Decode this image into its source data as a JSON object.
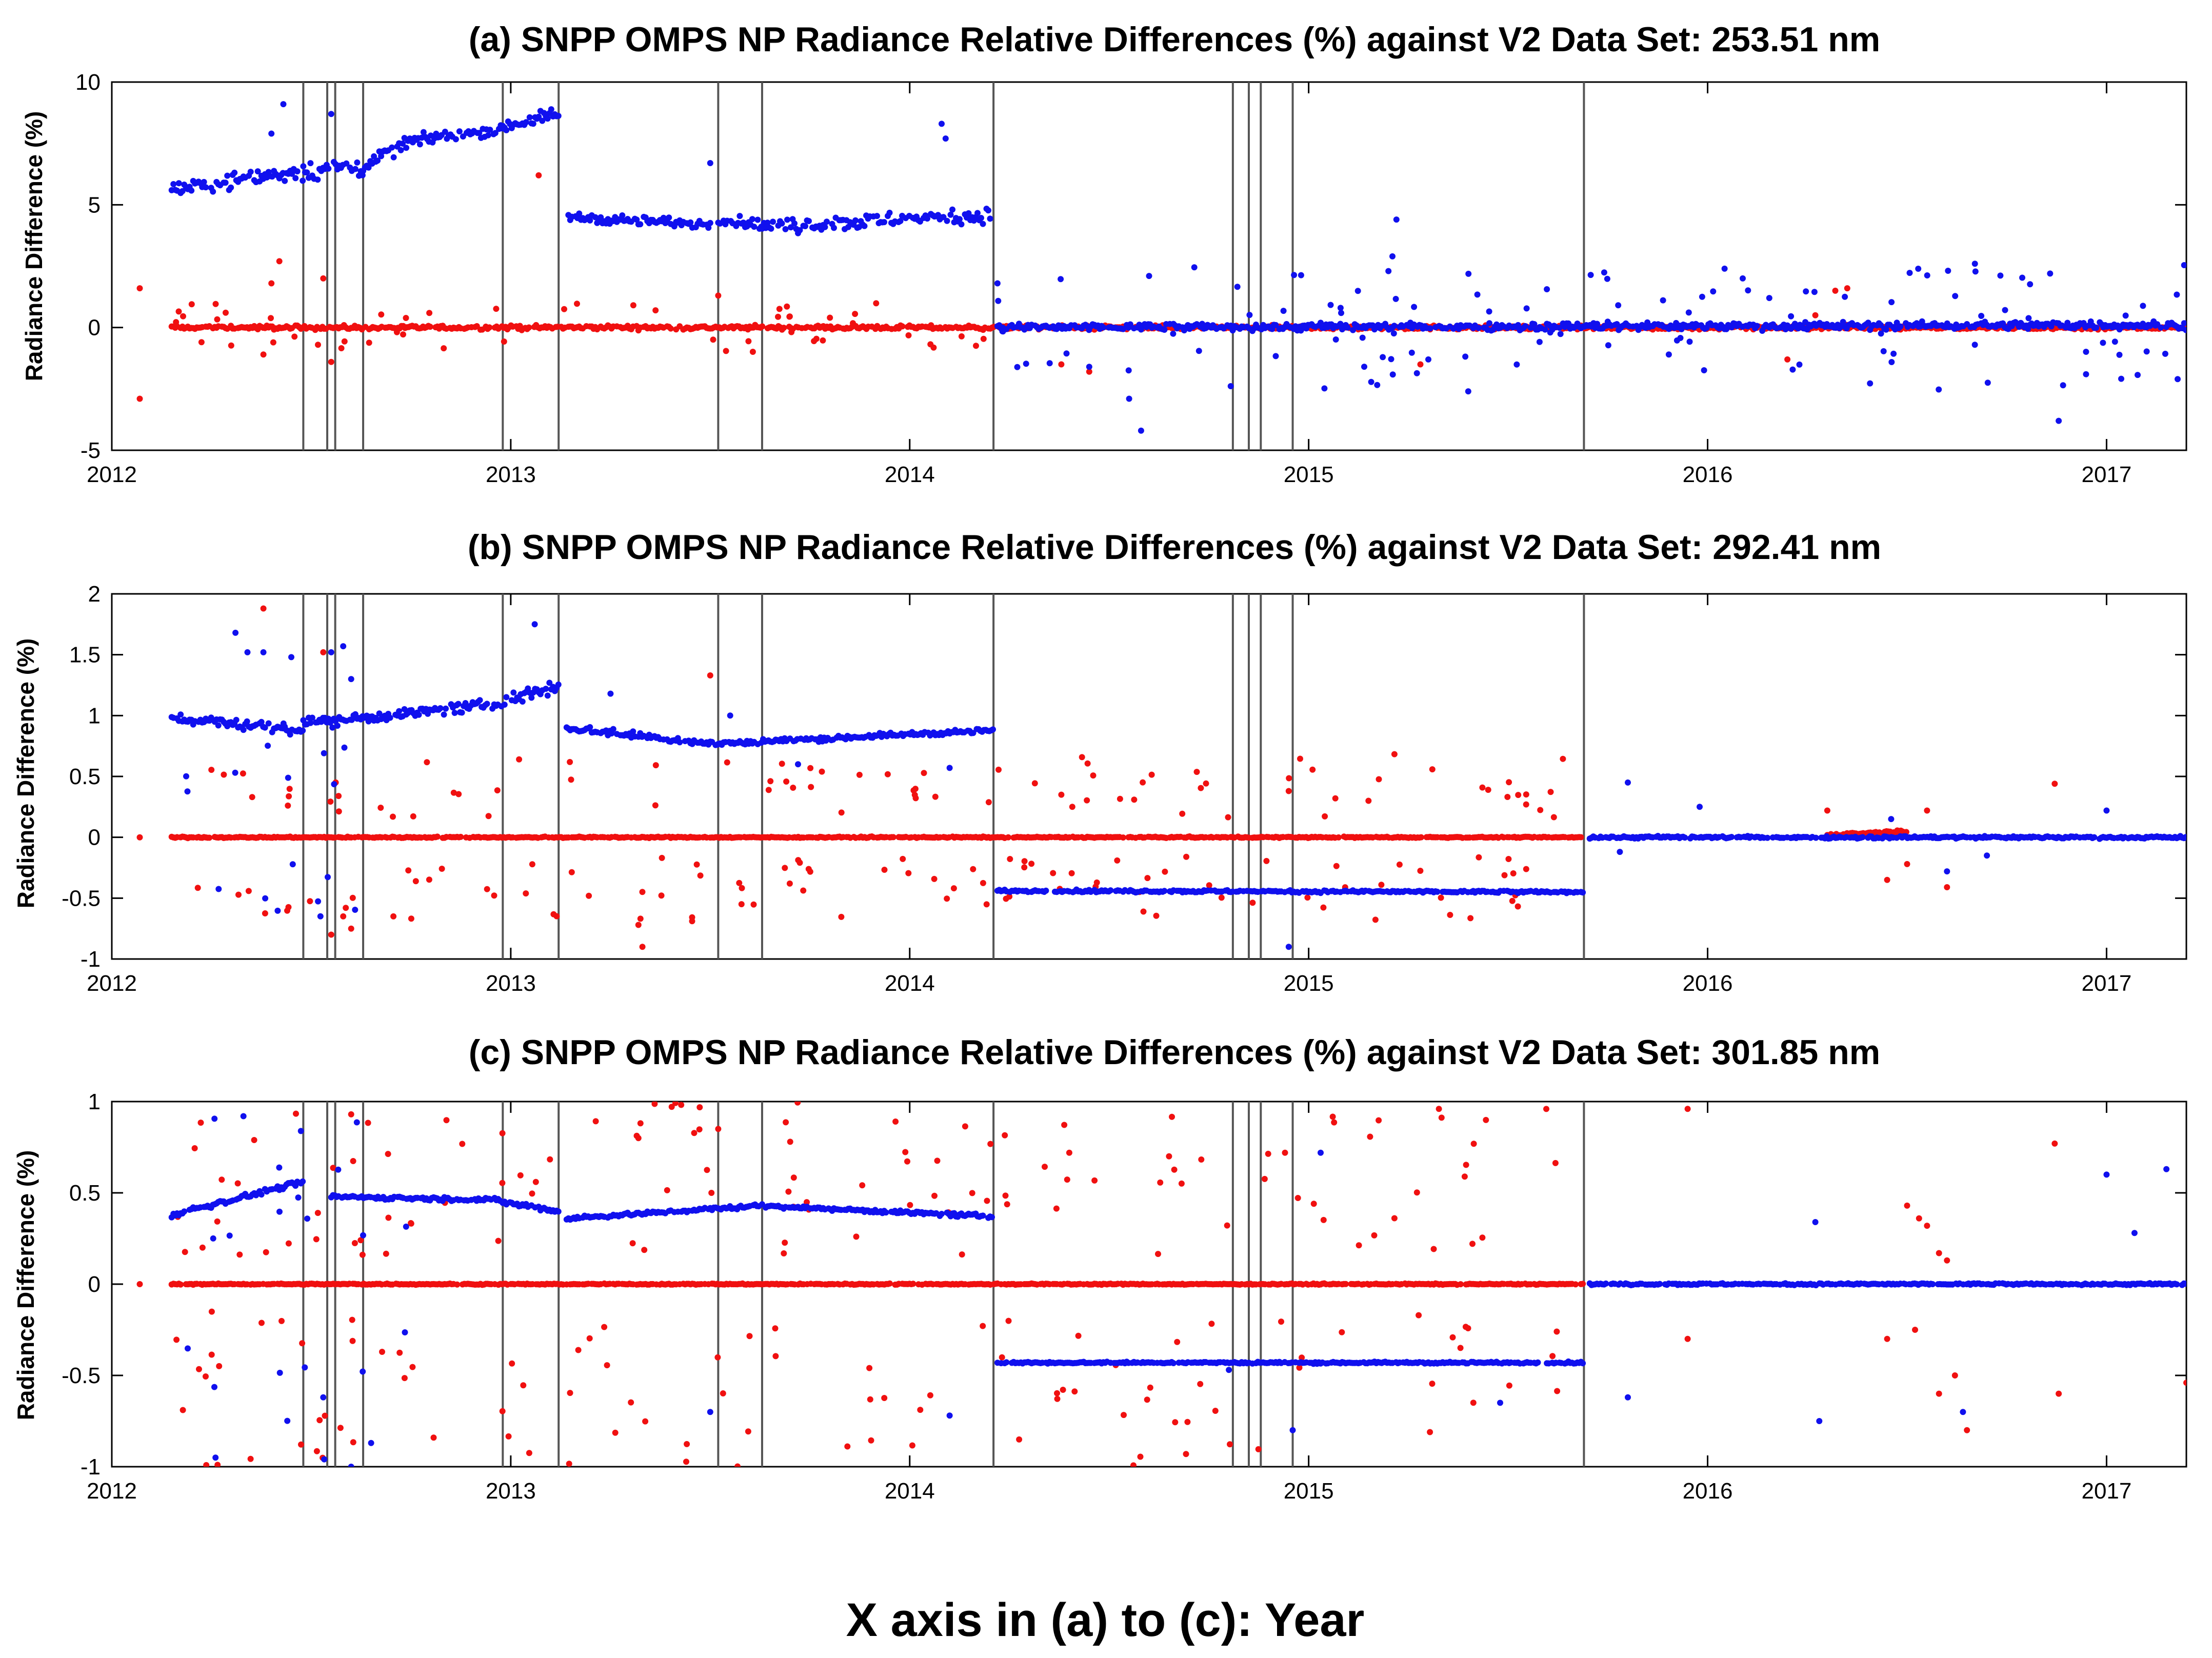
{
  "chart_data": [
    {
      "id": "a",
      "type": "scatter",
      "title": "(a) SNPP OMPS NP Radiance Relative Differences (%) against V2 Data Set: 253.51 nm",
      "xlabel": "",
      "ylabel": "Radiance Difference (%)",
      "xlim": [
        2012,
        2017.2
      ],
      "ylim": [
        -5,
        10
      ],
      "yticks": [
        -5,
        0,
        5,
        10
      ],
      "ytick_labels": [
        "-5",
        "0",
        "5",
        "10"
      ],
      "xticks": [
        2012,
        2013,
        2014,
        2015,
        2016,
        2017
      ],
      "xtick_labels": [
        "2012",
        "2013",
        "2014",
        "2015",
        "2016",
        "2017"
      ],
      "vertical_lines": [
        2012.48,
        2012.54,
        2012.56,
        2012.63,
        2012.98,
        2013.12,
        2013.52,
        2013.63,
        2014.21,
        2014.81,
        2014.85,
        2014.88,
        2014.96,
        2015.69
      ],
      "series": [
        {
          "name": "blue",
          "color": "#1010ee",
          "segments": [
            {
              "x0": 2012.15,
              "x1": 2012.48,
              "y0": 5.6,
              "y1": 6.4,
              "noise": 0.35
            },
            {
              "x0": 2012.48,
              "x1": 2012.63,
              "y0": 6.4,
              "y1": 6.5,
              "noise": 0.4
            },
            {
              "x0": 2012.63,
              "x1": 2012.75,
              "y0": 6.6,
              "y1": 7.6,
              "noise": 0.25
            },
            {
              "x0": 2012.75,
              "x1": 2012.98,
              "y0": 7.6,
              "y1": 8.1,
              "noise": 0.2
            },
            {
              "x0": 2012.98,
              "x1": 2013.12,
              "y0": 8.2,
              "y1": 8.7,
              "noise": 0.25
            },
            {
              "x0": 2013.14,
              "x1": 2013.52,
              "y0": 4.5,
              "y1": 4.2,
              "noise": 0.2
            },
            {
              "x0": 2013.52,
              "x1": 2013.63,
              "y0": 4.4,
              "y1": 4.2,
              "noise": 0.2
            },
            {
              "x0": 2013.63,
              "x1": 2014.21,
              "y0": 4.1,
              "y1": 4.6,
              "noise": 0.3
            },
            {
              "x0": 2014.22,
              "x1": 2017.2,
              "y0": 0.0,
              "y1": 0.1,
              "noise": 0.15
            }
          ],
          "outliers": [
            [
              2012.43,
              9.1
            ],
            [
              2012.4,
              7.9
            ],
            [
              2012.55,
              8.7
            ],
            [
              2013.5,
              6.7
            ],
            [
              2014.08,
              8.3
            ],
            [
              2014.09,
              7.7
            ],
            [
              2014.22,
              1.8
            ],
            [
              2015.08,
              0.8
            ],
            [
              2015.2,
              2.3
            ],
            [
              2015.22,
              4.4
            ],
            [
              2015.21,
              2.9
            ],
            [
              2014.58,
              -4.2
            ],
            [
              2014.55,
              -2.9
            ],
            [
              2014.45,
              -1.6
            ],
            [
              2014.6,
              2.1
            ],
            [
              2016.88,
              -3.8
            ],
            [
              2016.67,
              2.6
            ],
            [
              2015.3,
              -1.3
            ],
            [
              2015.4,
              -2.6
            ]
          ],
          "scatter": {
            "x0": 2014.22,
            "x1": 2017.2,
            "spread": 2.4,
            "count": 110
          }
        },
        {
          "name": "red",
          "color": "#f01010",
          "segments": [
            {
              "x0": 2012.15,
              "x1": 2017.2,
              "y0": 0.0,
              "y1": 0.0,
              "noise": 0.08
            }
          ],
          "outliers": [
            [
              2012.07,
              1.6
            ],
            [
              2012.07,
              -2.9
            ],
            [
              2012.42,
              2.7
            ],
            [
              2012.4,
              1.8
            ],
            [
              2012.53,
              2.0
            ],
            [
              2012.55,
              -1.4
            ],
            [
              2012.38,
              -1.1
            ],
            [
              2013.07,
              6.2
            ],
            [
              2013.52,
              1.3
            ],
            [
              2013.8,
              0.4
            ],
            [
              2014.38,
              -1.5
            ],
            [
              2014.45,
              -1.8
            ],
            [
              2015.28,
              -1.5
            ],
            [
              2016.2,
              -1.3
            ],
            [
              2016.32,
              1.5
            ],
            [
              2016.35,
              1.6
            ],
            [
              2016.27,
              0.5
            ]
          ],
          "scatter": {
            "x0": 2012.15,
            "x1": 2014.2,
            "spread": 0.9,
            "count": 50
          }
        }
      ]
    },
    {
      "id": "b",
      "type": "scatter",
      "title": "(b) SNPP OMPS NP Radiance Relative Differences (%) against V2 Data Set: 292.41 nm",
      "xlabel": "",
      "ylabel": "Radiance Difference (%)",
      "xlim": [
        2012,
        2017.2
      ],
      "ylim": [
        -1,
        2
      ],
      "yticks": [
        -1,
        -0.5,
        0,
        0.5,
        1,
        1.5,
        2
      ],
      "ytick_labels": [
        "-1",
        "-0.5",
        "0",
        "0.5",
        "1",
        "1.5",
        "2"
      ],
      "xticks": [
        2012,
        2013,
        2014,
        2015,
        2016,
        2017
      ],
      "xtick_labels": [
        "2012",
        "2013",
        "2014",
        "2015",
        "2016",
        "2017"
      ],
      "vertical_lines": [
        2012.48,
        2012.54,
        2012.56,
        2012.63,
        2012.98,
        2013.12,
        2013.52,
        2013.63,
        2014.21,
        2014.81,
        2014.85,
        2014.88,
        2014.96,
        2015.69
      ],
      "series": [
        {
          "name": "blue",
          "color": "#1010ee",
          "segments": [
            {
              "x0": 2012.15,
              "x1": 2012.48,
              "y0": 0.98,
              "y1": 0.88,
              "noise": 0.04
            },
            {
              "x0": 2012.48,
              "x1": 2012.63,
              "y0": 0.95,
              "y1": 0.98,
              "noise": 0.05
            },
            {
              "x0": 2012.63,
              "x1": 2012.98,
              "y0": 0.98,
              "y1": 1.1,
              "noise": 0.04
            },
            {
              "x0": 2012.98,
              "x1": 2013.12,
              "y0": 1.12,
              "y1": 1.25,
              "noise": 0.06
            },
            {
              "x0": 2013.14,
              "x1": 2013.52,
              "y0": 0.9,
              "y1": 0.76,
              "noise": 0.03
            },
            {
              "x0": 2013.52,
              "x1": 2014.21,
              "y0": 0.77,
              "y1": 0.88,
              "noise": 0.02
            },
            {
              "x0": 2014.22,
              "x1": 2015.69,
              "y0": -0.44,
              "y1": -0.45,
              "noise": 0.01
            },
            {
              "x0": 2015.7,
              "x1": 2017.2,
              "y0": 0.0,
              "y1": 0.0,
              "noise": 0.01
            }
          ],
          "outliers": [
            [
              2012.31,
              1.68
            ],
            [
              2012.34,
              1.52
            ],
            [
              2012.38,
              1.52
            ],
            [
              2012.45,
              1.48
            ],
            [
              2012.55,
              1.52
            ],
            [
              2012.58,
              1.57
            ],
            [
              2012.6,
              1.3
            ],
            [
              2013.06,
              1.75
            ],
            [
              2013.25,
              1.18
            ],
            [
              2013.55,
              1.0
            ],
            [
              2013.72,
              0.6
            ],
            [
              2014.1,
              0.57
            ],
            [
              2014.95,
              -0.9
            ],
            [
              2015.8,
              0.45
            ],
            [
              2015.98,
              0.25
            ],
            [
              2015.78,
              -0.12
            ],
            [
              2016.46,
              0.15
            ],
            [
              2016.6,
              -0.28
            ],
            [
              2016.7,
              -0.15
            ],
            [
              2017.0,
              0.22
            ]
          ],
          "scatter": {
            "x0": 2012.15,
            "x1": 2012.65,
            "spread": 0.9,
            "count": 18
          }
        },
        {
          "name": "red",
          "color": "#f01010",
          "segments": [
            {
              "x0": 2012.15,
              "x1": 2015.69,
              "y0": 0.0,
              "y1": 0.0,
              "noise": 0.005
            },
            {
              "x0": 2016.3,
              "x1": 2016.5,
              "y0": 0.02,
              "y1": 0.05,
              "noise": 0.01
            }
          ],
          "outliers": [
            [
              2012.07,
              0.0
            ],
            [
              2012.38,
              1.88
            ],
            [
              2012.53,
              1.52
            ],
            [
              2012.55,
              -0.8
            ],
            [
              2012.58,
              -0.65
            ],
            [
              2012.6,
              -0.75
            ],
            [
              2013.32,
              -0.72
            ],
            [
              2013.33,
              -0.9
            ],
            [
              2013.5,
              1.33
            ],
            [
              2014.38,
              0.35
            ],
            [
              2014.95,
              0.38
            ],
            [
              2015.15,
              0.3
            ],
            [
              2015.45,
              0.39
            ],
            [
              2016.3,
              0.22
            ],
            [
              2016.55,
              0.22
            ],
            [
              2016.87,
              0.44
            ],
            [
              2016.5,
              -0.22
            ],
            [
              2016.45,
              -0.35
            ],
            [
              2016.6,
              -0.41
            ]
          ],
          "scatter": {
            "x0": 2012.15,
            "x1": 2015.65,
            "spread": 0.55,
            "count": 170
          }
        }
      ]
    },
    {
      "id": "c",
      "type": "scatter",
      "title": "(c) SNPP OMPS NP Radiance Relative Differences (%) against V2 Data Set: 301.85 nm",
      "xlabel": "",
      "ylabel": "Radiance Difference (%)",
      "xlim": [
        2012,
        2017.2
      ],
      "ylim": [
        -1,
        1
      ],
      "yticks": [
        -1,
        -0.5,
        0,
        0.5,
        1
      ],
      "ytick_labels": [
        "-1",
        "-0.5",
        "0",
        "0.5",
        "1"
      ],
      "xticks": [
        2012,
        2013,
        2014,
        2015,
        2016,
        2017
      ],
      "xtick_labels": [
        "2012",
        "2013",
        "2014",
        "2015",
        "2016",
        "2017"
      ],
      "vertical_lines": [
        2012.48,
        2012.54,
        2012.56,
        2012.63,
        2012.98,
        2013.12,
        2013.52,
        2013.63,
        2014.21,
        2014.81,
        2014.85,
        2014.88,
        2014.96,
        2015.69
      ],
      "series": [
        {
          "name": "blue",
          "color": "#1010ee",
          "segments": [
            {
              "x0": 2012.15,
              "x1": 2012.48,
              "y0": 0.38,
              "y1": 0.56,
              "noise": 0.015
            },
            {
              "x0": 2012.55,
              "x1": 2012.98,
              "y0": 0.48,
              "y1": 0.46,
              "noise": 0.01
            },
            {
              "x0": 2012.98,
              "x1": 2013.12,
              "y0": 0.45,
              "y1": 0.4,
              "noise": 0.015
            },
            {
              "x0": 2013.14,
              "x1": 2013.63,
              "y0": 0.36,
              "y1": 0.43,
              "noise": 0.01
            },
            {
              "x0": 2013.63,
              "x1": 2014.21,
              "y0": 0.43,
              "y1": 0.37,
              "noise": 0.01
            },
            {
              "x0": 2014.22,
              "x1": 2015.69,
              "y0": -0.43,
              "y1": -0.43,
              "noise": 0.005
            },
            {
              "x0": 2015.7,
              "x1": 2017.2,
              "y0": 0.0,
              "y1": 0.0,
              "noise": 0.005
            }
          ],
          "outliers": [
            [
              2012.33,
              0.92
            ],
            [
              2012.26,
              -0.95
            ],
            [
              2012.6,
              -1.0
            ],
            [
              2012.53,
              -0.62
            ],
            [
              2012.65,
              -0.87
            ],
            [
              2013.5,
              -0.7
            ],
            [
              2014.1,
              -0.72
            ],
            [
              2014.96,
              -0.8
            ],
            [
              2015.03,
              0.72
            ],
            [
              2015.8,
              -0.62
            ],
            [
              2016.28,
              -0.75
            ],
            [
              2016.27,
              0.34
            ],
            [
              2016.64,
              -0.7
            ],
            [
              2017.0,
              0.6
            ],
            [
              2017.07,
              0.28
            ],
            [
              2017.15,
              0.63
            ],
            [
              2014.8,
              -0.47
            ],
            [
              2015.48,
              -0.65
            ]
          ],
          "scatter": {
            "x0": 2012.15,
            "x1": 2012.75,
            "spread": 0.9,
            "count": 22
          }
        },
        {
          "name": "red",
          "color": "#f01010",
          "segments": [
            {
              "x0": 2012.15,
              "x1": 2015.69,
              "y0": 0.0,
              "y1": 0.0,
              "noise": 0.003
            }
          ],
          "outliers": [
            [
              2012.07,
              0.0
            ],
            [
              2012.6,
              0.93
            ],
            [
              2013.52,
              0.85
            ],
            [
              2013.32,
              0.8
            ],
            [
              2014.4,
              0.72
            ],
            [
              2014.65,
              0.7
            ],
            [
              2015.95,
              0.96
            ],
            [
              2016.87,
              0.77
            ],
            [
              2017.2,
              -0.54
            ],
            [
              2016.5,
              0.43
            ],
            [
              2016.53,
              0.36
            ],
            [
              2016.55,
              0.32
            ],
            [
              2016.58,
              0.17
            ],
            [
              2016.6,
              0.13
            ],
            [
              2016.52,
              -0.25
            ],
            [
              2016.45,
              -0.3
            ],
            [
              2016.62,
              -0.5
            ],
            [
              2016.65,
              -0.8
            ],
            [
              2016.58,
              -0.6
            ],
            [
              2015.95,
              -0.3
            ],
            [
              2016.88,
              -0.6
            ]
          ],
          "scatter": {
            "x0": 2012.15,
            "x1": 2015.65,
            "spread": 0.9,
            "count": 230
          }
        }
      ]
    }
  ],
  "footer": {
    "label": "X axis in (a) to (c): Year"
  },
  "colors": {
    "blue": "#1010ee",
    "red": "#f01010",
    "axis": "#000000",
    "vline": "#555555"
  }
}
